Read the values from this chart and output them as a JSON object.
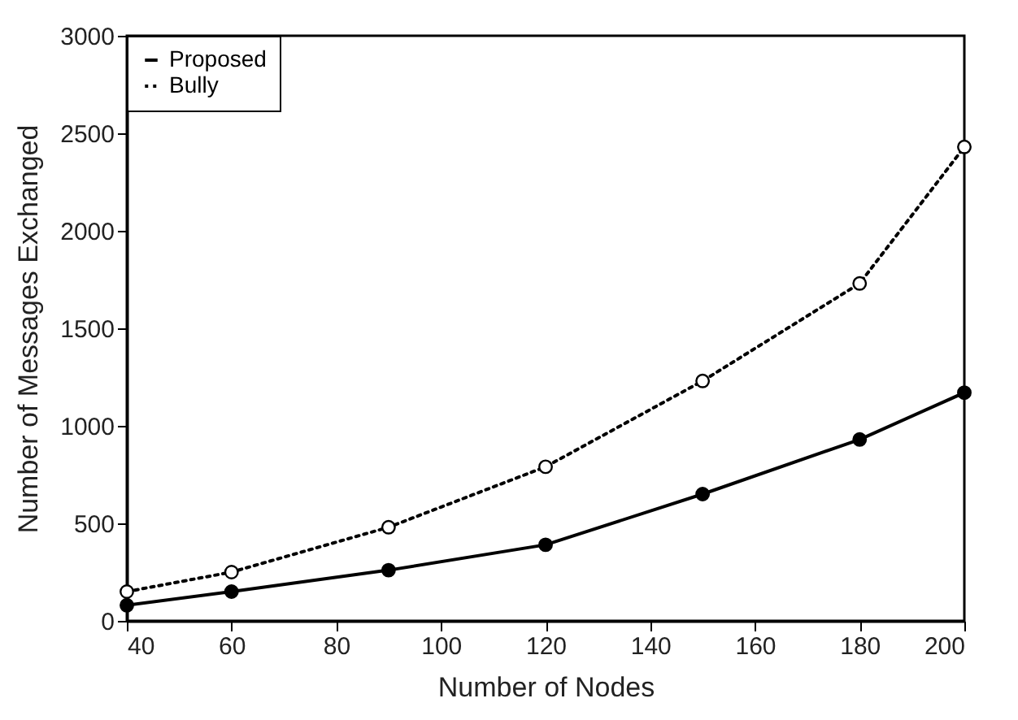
{
  "chart_data": {
    "type": "line",
    "xlabel": "Number of Nodes",
    "ylabel": "Number of Messages Exchanged",
    "xlim": [
      40,
      200
    ],
    "xticks": [
      40,
      60,
      80,
      100,
      120,
      140,
      160,
      180,
      200
    ],
    "ylim": [
      0,
      3000
    ],
    "yticks": [
      0,
      500,
      1000,
      1500,
      2000,
      2500,
      3000
    ],
    "grid": false,
    "legend": "top left",
    "marker": "circle",
    "series": [
      {
        "name": "Proposed",
        "color": "#000000",
        "line_style": "solid",
        "x": [
          40,
          60,
          90,
          120,
          150,
          180,
          200
        ],
        "values": [
          80,
          150,
          260,
          390,
          650,
          930,
          1170
        ]
      },
      {
        "name": "Bully",
        "color": "#000000",
        "line_style": "dotted",
        "x": [
          40,
          60,
          90,
          120,
          150,
          180,
          200
        ],
        "values": [
          150,
          250,
          480,
          790,
          1230,
          1730,
          2430
        ]
      }
    ]
  }
}
